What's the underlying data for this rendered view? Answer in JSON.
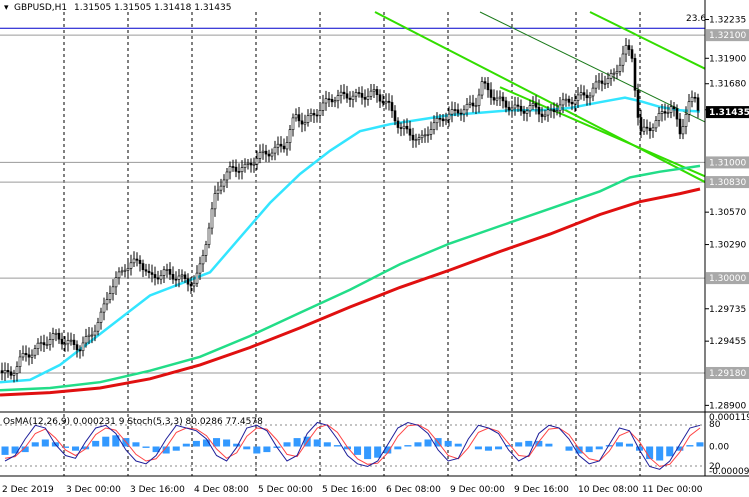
{
  "header": {
    "symbol": "GBPUSD,H1",
    "ohlc": "1.31505 1.31505 1.31418 1.31435"
  },
  "fib_label": "23.6",
  "current_price": "1.31435",
  "price_axis": {
    "ticks": [
      "1.32235",
      "1.31900",
      "1.31680",
      "1.31455",
      "1.30570",
      "1.30290",
      "1.29735",
      "1.29455",
      "1.28900"
    ],
    "level_labels": [
      "1.32100",
      "1.31000",
      "1.30830",
      "1.30000",
      "1.29180"
    ]
  },
  "time_axis": {
    "labels": [
      "2 Dec 2019",
      "3 Dec 00:00",
      "3 Dec 16:00",
      "4 Dec 08:00",
      "5 Dec 00:00",
      "5 Dec 16:00",
      "6 Dec 08:00",
      "9 Dec 00:00",
      "9 Dec 16:00",
      "10 Dec 08:00",
      "11 Dec 00:00"
    ]
  },
  "indicator": {
    "label": "OsMA(12,26,9) 0.000231 9 Stoch(5,3,3) 80.0286 77.4578",
    "axis": [
      "0.0001193",
      "80",
      "0.00",
      "20",
      "-0.0000985"
    ]
  },
  "colors": {
    "candle": "#000000",
    "ema_fast": "#33e5ff",
    "ema_mid": "#22dd88",
    "ema_slow": "#e01010",
    "channel": "#33dd00",
    "trend": "#1a7a1a",
    "level_line": "#9a9a9a",
    "fib_line": "#0000cc",
    "osma": "#3399ff",
    "stoch_main": "#1f1f9a",
    "stoch_signal": "#ff4444"
  },
  "chart_data": {
    "type": "line",
    "ylim": [
      1.2886,
      1.323
    ],
    "levels": [
      1.321,
      1.31,
      1.3083,
      1.3,
      1.2918
    ],
    "fib_level": 1.3216,
    "ema_fast": [
      [
        0,
        1.291
      ],
      [
        30,
        1.2912
      ],
      [
        60,
        1.2925
      ],
      [
        90,
        1.2945
      ],
      [
        120,
        1.2965
      ],
      [
        150,
        1.2985
      ],
      [
        180,
        1.2995
      ],
      [
        210,
        1.3005
      ],
      [
        240,
        1.3035
      ],
      [
        270,
        1.3065
      ],
      [
        300,
        1.309
      ],
      [
        330,
        1.311
      ],
      [
        360,
        1.3127
      ],
      [
        390,
        1.3133
      ],
      [
        420,
        1.3137
      ],
      [
        450,
        1.3141
      ],
      [
        480,
        1.3143
      ],
      [
        510,
        1.3145
      ],
      [
        540,
        1.3145
      ],
      [
        570,
        1.3147
      ],
      [
        600,
        1.3152
      ],
      [
        625,
        1.3156
      ],
      [
        640,
        1.3153
      ],
      [
        660,
        1.3148
      ],
      [
        680,
        1.3145
      ],
      [
        700,
        1.3144
      ]
    ],
    "ema_mid": [
      [
        0,
        1.2903
      ],
      [
        50,
        1.2905
      ],
      [
        100,
        1.291
      ],
      [
        150,
        1.292
      ],
      [
        200,
        1.2932
      ],
      [
        250,
        1.295
      ],
      [
        300,
        1.297
      ],
      [
        350,
        1.299
      ],
      [
        400,
        1.3012
      ],
      [
        450,
        1.303
      ],
      [
        500,
        1.3045
      ],
      [
        550,
        1.306
      ],
      [
        600,
        1.3075
      ],
      [
        630,
        1.3087
      ],
      [
        660,
        1.3092
      ],
      [
        700,
        1.3097
      ]
    ],
    "ema_slow": [
      [
        0,
        1.2899
      ],
      [
        50,
        1.2901
      ],
      [
        100,
        1.2905
      ],
      [
        150,
        1.2913
      ],
      [
        200,
        1.2925
      ],
      [
        250,
        1.294
      ],
      [
        300,
        1.2957
      ],
      [
        350,
        1.2975
      ],
      [
        400,
        1.2992
      ],
      [
        450,
        1.3007
      ],
      [
        500,
        1.3023
      ],
      [
        550,
        1.3038
      ],
      [
        600,
        1.3055
      ],
      [
        640,
        1.3066
      ],
      [
        680,
        1.3073
      ],
      [
        700,
        1.3077
      ]
    ],
    "close": [
      [
        0,
        1.292
      ],
      [
        10,
        1.2915
      ],
      [
        20,
        1.293
      ],
      [
        30,
        1.2935
      ],
      [
        45,
        1.2945
      ],
      [
        55,
        1.295
      ],
      [
        65,
        1.2945
      ],
      [
        80,
        1.294
      ],
      [
        90,
        1.295
      ],
      [
        100,
        1.2965
      ],
      [
        110,
        1.299
      ],
      [
        125,
        1.301
      ],
      [
        140,
        1.3015
      ],
      [
        150,
        1.3
      ],
      [
        165,
        1.3005
      ],
      [
        180,
        1.3
      ],
      [
        195,
        1.2995
      ],
      [
        200,
        1.301
      ],
      [
        208,
        1.304
      ],
      [
        215,
        1.307
      ],
      [
        222,
        1.3085
      ],
      [
        232,
        1.3095
      ],
      [
        245,
        1.3095
      ],
      [
        258,
        1.3105
      ],
      [
        272,
        1.311
      ],
      [
        285,
        1.3115
      ],
      [
        295,
        1.314
      ],
      [
        305,
        1.3135
      ],
      [
        318,
        1.3145
      ],
      [
        330,
        1.3155
      ],
      [
        345,
        1.3158
      ],
      [
        360,
        1.3157
      ],
      [
        375,
        1.316
      ],
      [
        388,
        1.315
      ],
      [
        400,
        1.313
      ],
      [
        410,
        1.3125
      ],
      [
        420,
        1.3118
      ],
      [
        430,
        1.313
      ],
      [
        445,
        1.314
      ],
      [
        460,
        1.3145
      ],
      [
        475,
        1.315
      ],
      [
        482,
        1.3168
      ],
      [
        492,
        1.3158
      ],
      [
        505,
        1.315
      ],
      [
        520,
        1.3145
      ],
      [
        535,
        1.3148
      ],
      [
        545,
        1.314
      ],
      [
        560,
        1.315
      ],
      [
        575,
        1.3155
      ],
      [
        590,
        1.316
      ],
      [
        600,
        1.317
      ],
      [
        615,
        1.3175
      ],
      [
        625,
        1.32
      ],
      [
        632,
        1.319
      ],
      [
        640,
        1.3125
      ],
      [
        650,
        1.313
      ],
      [
        660,
        1.314
      ],
      [
        672,
        1.315
      ],
      [
        680,
        1.3125
      ],
      [
        688,
        1.315
      ],
      [
        695,
        1.3155
      ],
      [
        700,
        1.3143
      ]
    ],
    "channel_lines": [
      {
        "x1": 375,
        "y1": 1.323,
        "x2": 705,
        "y2": 1.3083
      },
      {
        "x1": 590,
        "y1": 1.323,
        "x2": 705,
        "y2": 1.3181
      },
      {
        "x1": 500,
        "y1": 1.3165,
        "x2": 705,
        "y2": 1.3088
      }
    ],
    "trend_line": {
      "x1": 480,
      "y1": 1.323,
      "x2": 705,
      "y2": 1.3135
    },
    "indicator_series": {
      "osma": [
        -0.6,
        -0.5,
        -0.4,
        0.3,
        0.5,
        0.3,
        -0.1,
        -0.3,
        -0.2,
        0.4,
        0.7,
        0.8,
        0.6,
        0.3,
        -0.1,
        -0.4,
        -0.5,
        -0.3,
        0.2,
        0.4,
        0.5,
        0.6,
        0.5,
        0.2,
        -0.2,
        -0.5,
        -0.4,
        -0.1,
        0.3,
        0.6,
        0.7,
        0.5,
        0.3,
        0.1,
        -0.2,
        -0.6,
        -0.9,
        -0.8,
        -0.5,
        -0.2,
        0.1,
        0.3,
        0.5,
        0.6,
        0.4,
        0.2,
        0.0,
        -0.2,
        -0.3,
        -0.2,
        0.1,
        0.3,
        0.4,
        0.4,
        0.2,
        0.0,
        -0.3,
        -0.5,
        -0.4,
        -0.2,
        0.1,
        0.3,
        0.2,
        -0.3,
        -0.9,
        -1.0,
        -0.7,
        -0.3,
        0.1,
        0.3
      ],
      "stoch_main": [
        20,
        30,
        60,
        85,
        80,
        50,
        30,
        25,
        55,
        80,
        85,
        70,
        40,
        20,
        15,
        30,
        60,
        85,
        80,
        75,
        60,
        30,
        20,
        45,
        80,
        85,
        75,
        45,
        20,
        30,
        70,
        90,
        85,
        60,
        30,
        15,
        10,
        20,
        50,
        80,
        90,
        85,
        70,
        40,
        20,
        25,
        60,
        85,
        80,
        70,
        40,
        20,
        30,
        70,
        85,
        80,
        60,
        30,
        15,
        20,
        50,
        80,
        75,
        40,
        10,
        5,
        20,
        50,
        80,
        85
      ],
      "stoch_signal": [
        25,
        28,
        45,
        70,
        78,
        62,
        40,
        30,
        42,
        68,
        80,
        76,
        55,
        32,
        20,
        24,
        45,
        72,
        80,
        78,
        66,
        42,
        25,
        35,
        65,
        80,
        78,
        58,
        32,
        28,
        55,
        80,
        86,
        72,
        45,
        24,
        14,
        16,
        35,
        65,
        84,
        86,
        76,
        54,
        30,
        24,
        44,
        72,
        80,
        74,
        52,
        30,
        28,
        55,
        78,
        80,
        68,
        42,
        24,
        20,
        38,
        66,
        74,
        55,
        26,
        10,
        14,
        36,
        66,
        80
      ]
    }
  }
}
